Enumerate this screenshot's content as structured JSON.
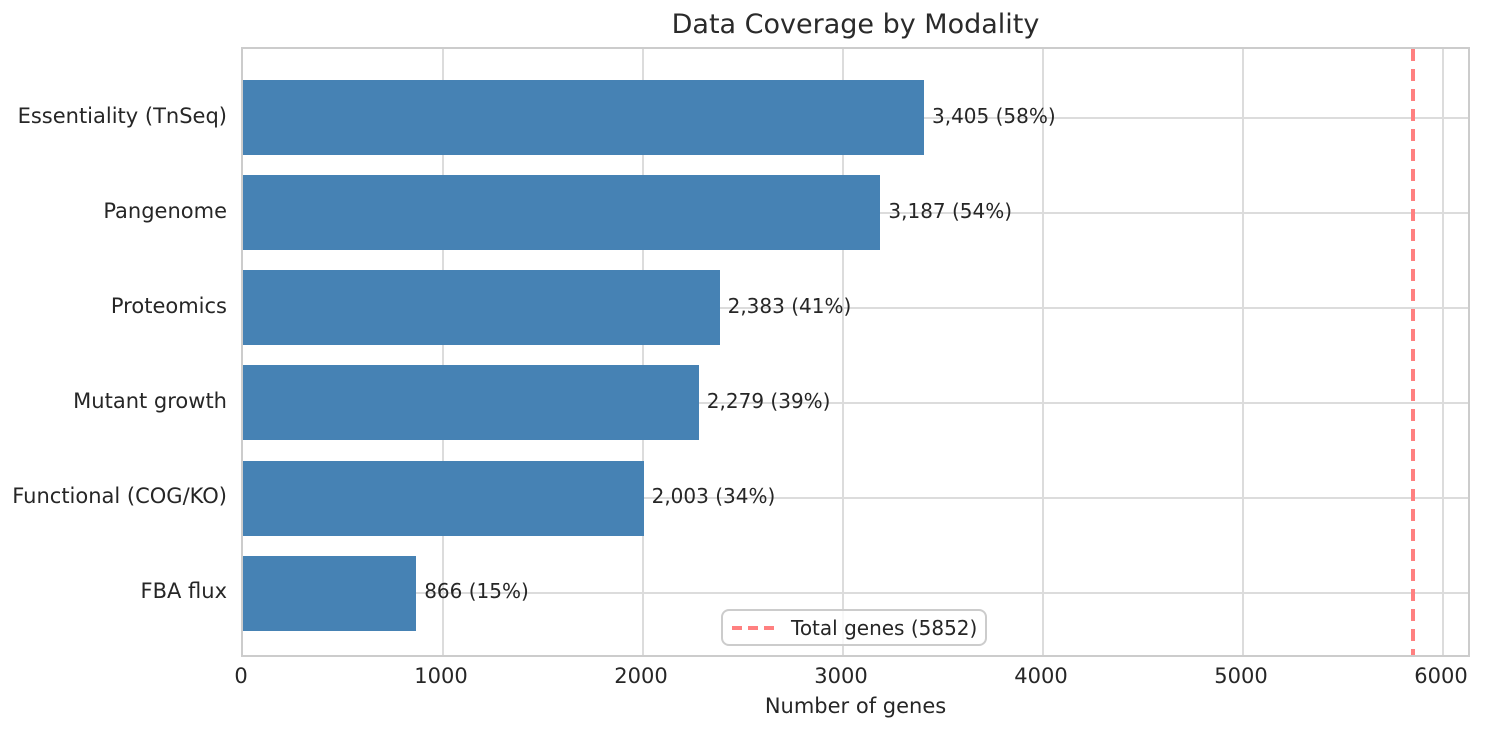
{
  "title": "Data Coverage by Modality",
  "chart_data": {
    "type": "bar",
    "orientation": "horizontal",
    "title": "Data Coverage by Modality",
    "xlabel": "Number of genes",
    "categories": [
      "Essentiality (TnSeq)",
      "Pangenome",
      "Proteomics",
      "Mutant growth",
      "Functional (COG/KO)",
      "FBA flux"
    ],
    "values": [
      3405,
      3187,
      2383,
      2279,
      2003,
      866
    ],
    "bar_labels": [
      "3,405 (58%)",
      "3,187 (54%)",
      "2,383 (41%)",
      "2,279 (39%)",
      "2,003 (34%)",
      "866 (15%)"
    ],
    "percent_of_total": [
      58,
      54,
      41,
      39,
      34,
      15
    ],
    "xticks": [
      0,
      1000,
      2000,
      3000,
      4000,
      5000,
      6000
    ],
    "xlim": [
      0,
      6145
    ],
    "grid": true,
    "reference_line": {
      "value": 5852,
      "label": "Total genes (5852)",
      "style": "dashed",
      "color": "#ff8080"
    },
    "legend": {
      "entries": [
        "Total genes (5852)"
      ],
      "position": "lower center"
    },
    "colors": {
      "bar": "#4682b4",
      "grid": "#dcdcdc",
      "spine": "#cccccc",
      "text": "#262626",
      "reference": "#ff8080"
    }
  }
}
